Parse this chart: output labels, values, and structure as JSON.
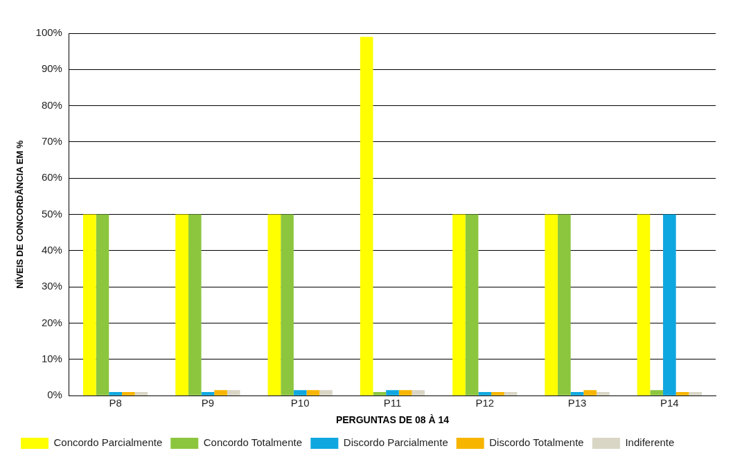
{
  "chart_data": {
    "type": "bar",
    "xlabel": "PERGUNTAS DE 08 À 14",
    "ylabel": "NÍVEIS DE CONCORDÂNCIA EM %",
    "categories": [
      "P8",
      "P9",
      "P10",
      "P11",
      "P12",
      "P13",
      "P14"
    ],
    "series": [
      {
        "name": "Concordo Parcialmente",
        "color": "#ffff00",
        "values": [
          50,
          50,
          50,
          99,
          50,
          50,
          50
        ]
      },
      {
        "name": "Concordo Totalmente",
        "color": "#8cc63f",
        "values": [
          50,
          50,
          50,
          1,
          50,
          50,
          1.5
        ]
      },
      {
        "name": "Discordo Parcialmente",
        "color": "#0fa7e0",
        "values": [
          1,
          1,
          1.5,
          1.5,
          1,
          1,
          50
        ]
      },
      {
        "name": "Discordo Totalmente",
        "color": "#f7b500",
        "values": [
          1,
          1.5,
          1.5,
          1.5,
          1,
          1.5,
          1
        ]
      },
      {
        "name": "Indiferente",
        "color": "#d9d6c6",
        "values": [
          1,
          1.5,
          1.5,
          1.5,
          1,
          1,
          1
        ]
      }
    ],
    "ylim": [
      0,
      100
    ],
    "yticks": [
      {
        "value": 0,
        "label": "0%"
      },
      {
        "value": 10,
        "label": "10%"
      },
      {
        "value": 20,
        "label": "20%"
      },
      {
        "value": 30,
        "label": "30%"
      },
      {
        "value": 40,
        "label": "40%"
      },
      {
        "value": 50,
        "label": "50%"
      },
      {
        "value": 60,
        "label": "60%"
      },
      {
        "value": 70,
        "label": "70%"
      },
      {
        "value": 80,
        "label": "80%"
      },
      {
        "value": 90,
        "label": "90%"
      },
      {
        "value": 100,
        "label": "100%"
      }
    ],
    "grid": "y",
    "legend": "bottom"
  }
}
